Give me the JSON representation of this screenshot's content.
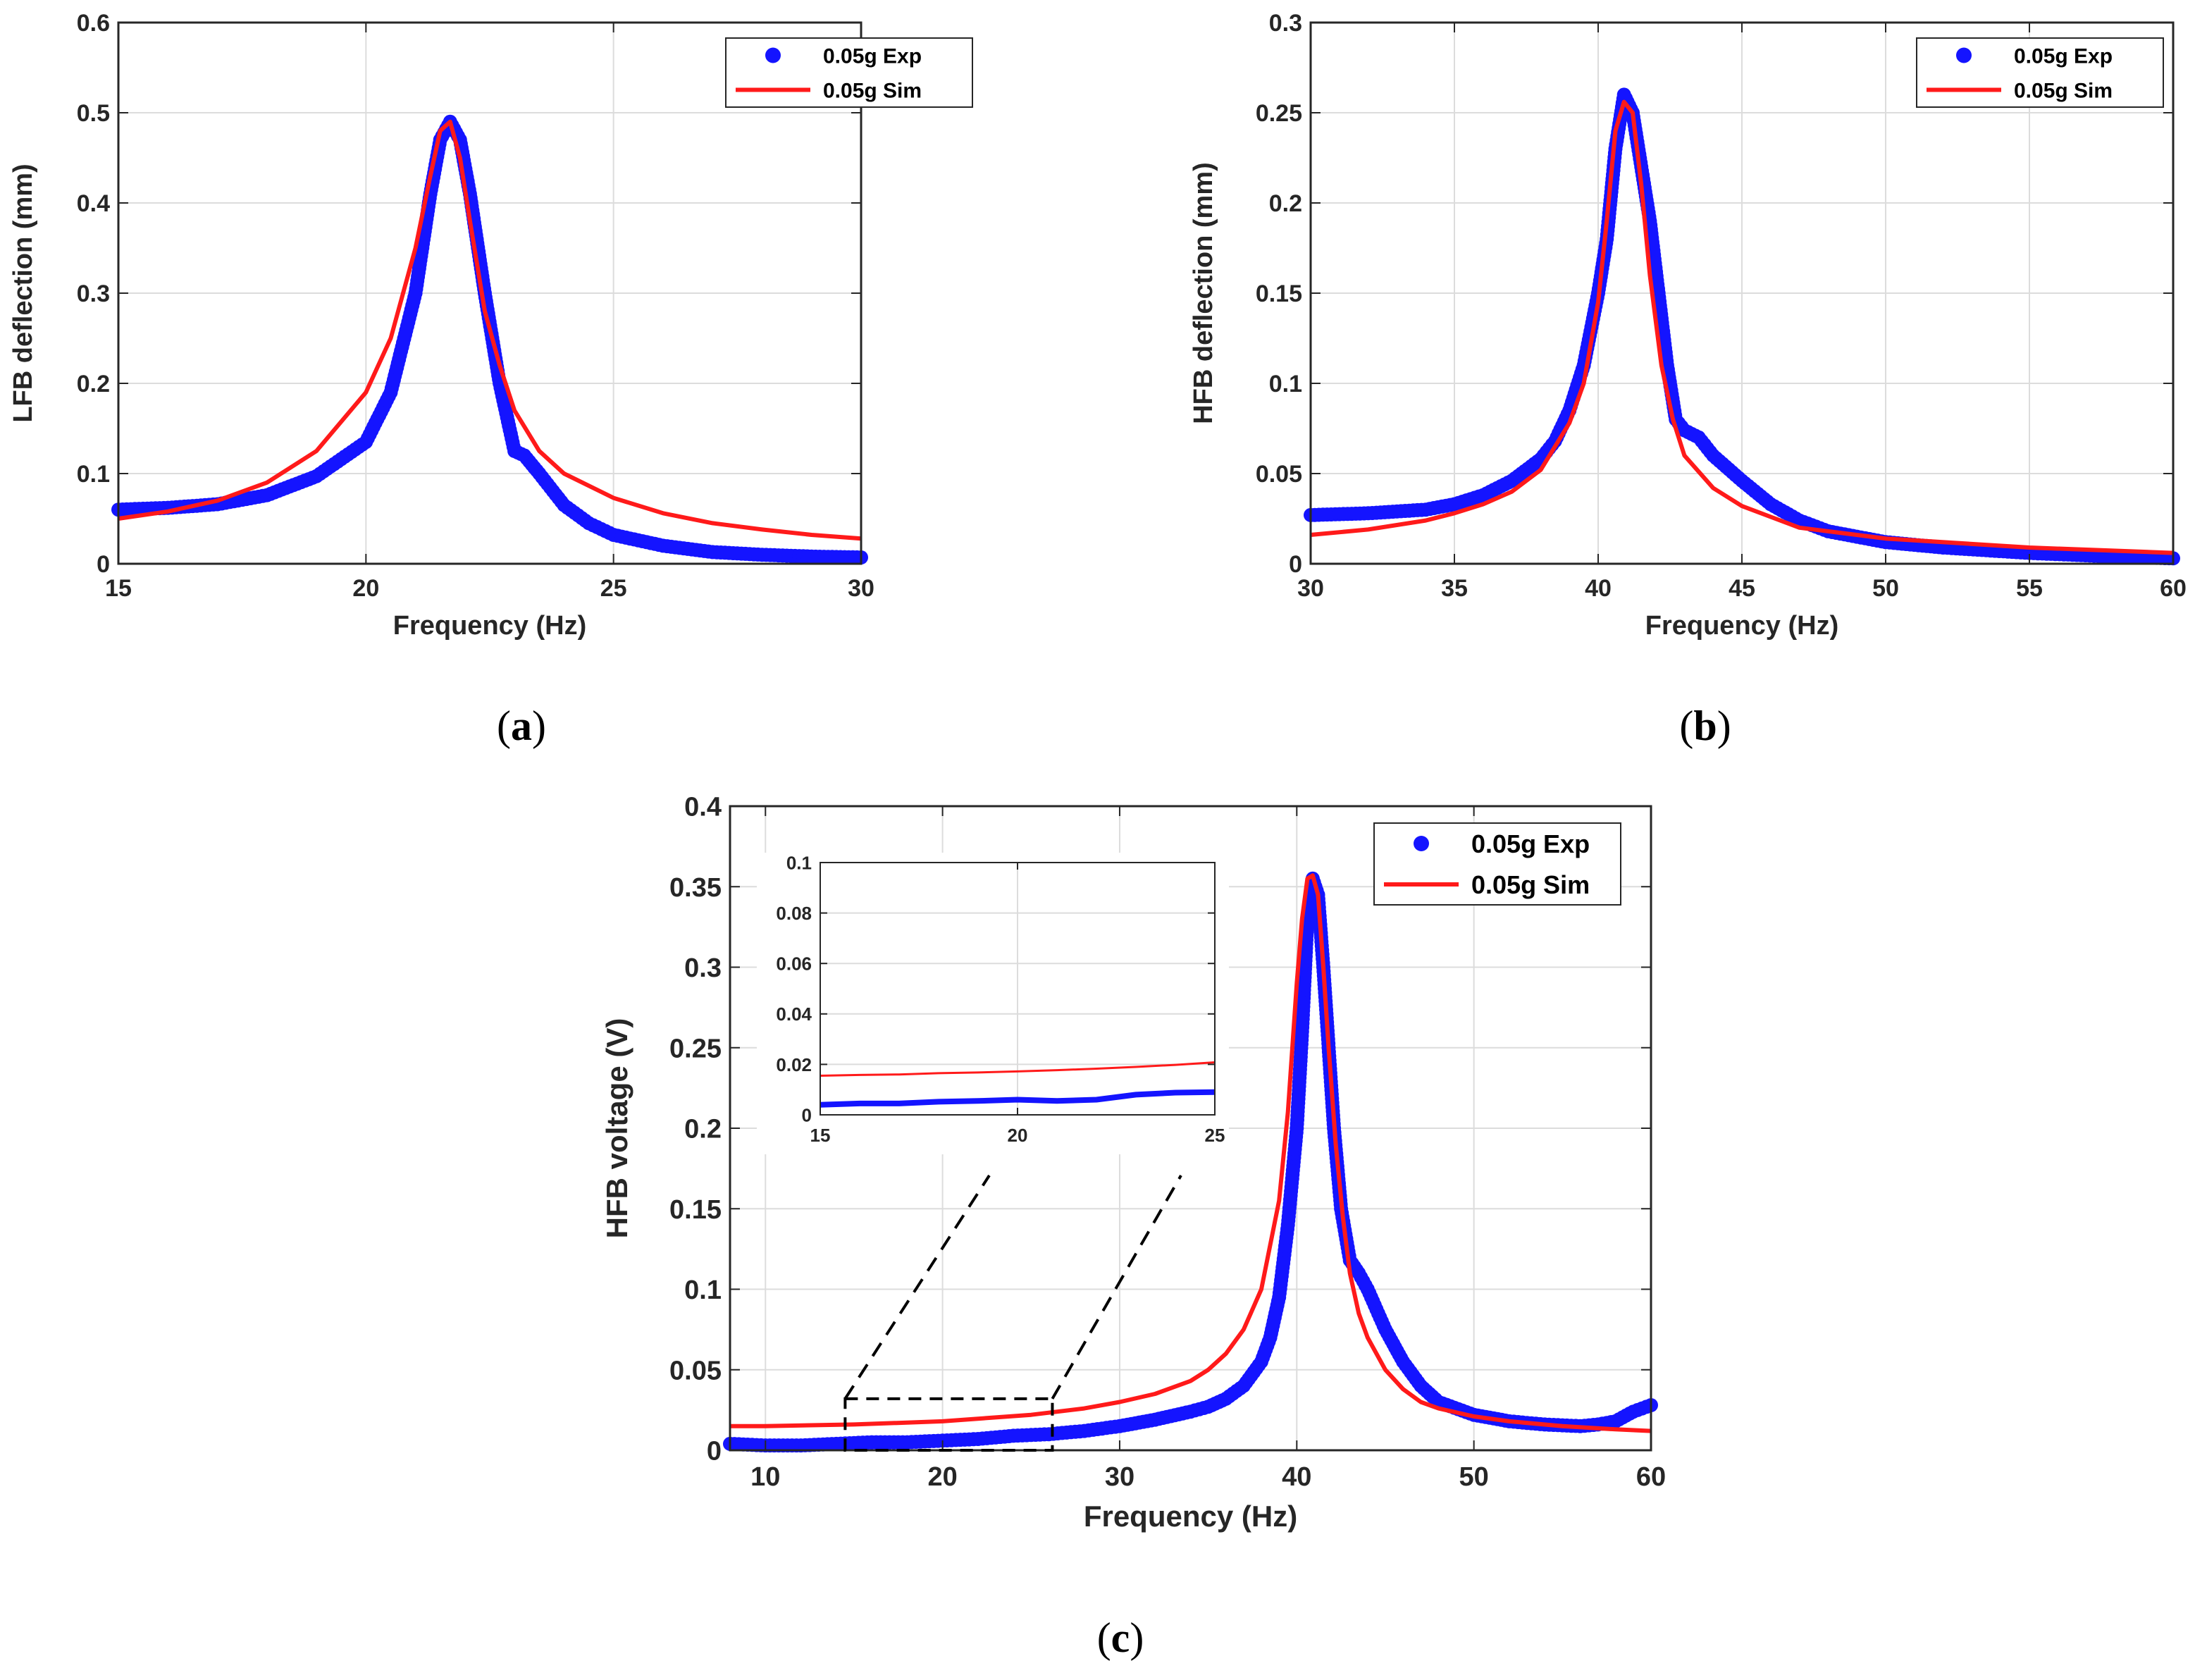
{
  "colors": {
    "exp": "#1414ff",
    "sim": "#ff1a1a",
    "axis": "#262626",
    "grid": "#dcdcdc"
  },
  "chart_data": [
    {
      "id": "a",
      "type": "scatter",
      "caption_letter": "a",
      "xlabel": "Frequency (Hz)",
      "ylabel": "LFB deflection (mm)",
      "xlim": [
        15,
        30
      ],
      "ylim": [
        0,
        0.6
      ],
      "xticks": [
        15,
        20,
        25,
        30
      ],
      "yticks": [
        0,
        0.1,
        0.2,
        0.3,
        0.4,
        0.5,
        0.6
      ],
      "legend_position": "top-right",
      "series": [
        {
          "name": "0.05g Exp",
          "kind": "markers",
          "x": [
            15,
            16,
            17,
            18,
            19,
            20,
            20.5,
            21,
            21.3,
            21.5,
            21.7,
            21.9,
            22.1,
            22.4,
            22.7,
            23,
            23.2,
            23.5,
            24,
            24.5,
            25,
            26,
            27,
            28,
            29,
            30
          ],
          "y": [
            0.06,
            0.062,
            0.066,
            0.076,
            0.097,
            0.135,
            0.19,
            0.3,
            0.41,
            0.47,
            0.49,
            0.47,
            0.41,
            0.3,
            0.2,
            0.125,
            0.12,
            0.1,
            0.065,
            0.045,
            0.032,
            0.02,
            0.013,
            0.01,
            0.008,
            0.007
          ]
        },
        {
          "name": "0.05g Sim",
          "kind": "line",
          "x": [
            15,
            16,
            17,
            18,
            19,
            20,
            20.5,
            21,
            21.3,
            21.5,
            21.7,
            21.9,
            22.1,
            22.4,
            22.7,
            23,
            23.5,
            24,
            25,
            26,
            27,
            28,
            29,
            30
          ],
          "y": [
            0.05,
            0.058,
            0.07,
            0.09,
            0.125,
            0.19,
            0.25,
            0.35,
            0.43,
            0.48,
            0.49,
            0.45,
            0.38,
            0.28,
            0.22,
            0.17,
            0.125,
            0.1,
            0.073,
            0.056,
            0.045,
            0.038,
            0.032,
            0.028
          ]
        }
      ]
    },
    {
      "id": "b",
      "type": "scatter",
      "caption_letter": "b",
      "xlabel": "Frequency (Hz)",
      "ylabel": "HFB deflection (mm)",
      "xlim": [
        30,
        60
      ],
      "ylim": [
        0,
        0.3
      ],
      "xticks": [
        30,
        35,
        40,
        45,
        50,
        55,
        60
      ],
      "yticks": [
        0,
        0.05,
        0.1,
        0.15,
        0.2,
        0.25,
        0.3
      ],
      "legend_position": "top-right",
      "series": [
        {
          "name": "0.05g Exp",
          "kind": "markers",
          "x": [
            30,
            32,
            34,
            35,
            36,
            37,
            38,
            38.5,
            39,
            39.5,
            40,
            40.3,
            40.6,
            40.9,
            41.2,
            41.5,
            41.8,
            42.1,
            42.4,
            42.7,
            43,
            43.5,
            44,
            45,
            46,
            47,
            48,
            50,
            52,
            55,
            58,
            60
          ],
          "y": [
            0.027,
            0.028,
            0.03,
            0.033,
            0.038,
            0.046,
            0.058,
            0.068,
            0.085,
            0.11,
            0.15,
            0.18,
            0.23,
            0.26,
            0.25,
            0.22,
            0.19,
            0.15,
            0.11,
            0.08,
            0.074,
            0.07,
            0.06,
            0.046,
            0.033,
            0.024,
            0.018,
            0.012,
            0.009,
            0.006,
            0.004,
            0.003
          ]
        },
        {
          "name": "0.05g Sim",
          "kind": "line",
          "x": [
            30,
            32,
            34,
            35,
            36,
            37,
            38,
            39,
            39.5,
            40,
            40.3,
            40.6,
            40.9,
            41.2,
            41.5,
            41.8,
            42.2,
            42.6,
            43,
            44,
            45,
            47,
            50,
            55,
            60
          ],
          "y": [
            0.016,
            0.019,
            0.024,
            0.028,
            0.033,
            0.04,
            0.052,
            0.078,
            0.1,
            0.145,
            0.19,
            0.24,
            0.256,
            0.25,
            0.21,
            0.16,
            0.11,
            0.08,
            0.06,
            0.042,
            0.032,
            0.02,
            0.014,
            0.009,
            0.006
          ]
        }
      ]
    },
    {
      "id": "c",
      "type": "scatter",
      "caption_letter": "c",
      "xlabel": "Frequency (Hz)",
      "ylabel": "HFB voltage (V)",
      "xlim": [
        8,
        60
      ],
      "ylim": [
        0,
        0.4
      ],
      "xticks": [
        10,
        20,
        30,
        40,
        50,
        60
      ],
      "yticks": [
        0,
        0.05,
        0.1,
        0.15,
        0.2,
        0.25,
        0.3,
        0.35,
        0.4
      ],
      "legend_position": "top-right",
      "zoom_box": {
        "x": [
          14.5,
          26.2
        ],
        "y": [
          0,
          0.032
        ]
      },
      "series": [
        {
          "name": "0.05g Exp",
          "kind": "markers",
          "x": [
            8,
            10,
            12,
            14,
            16,
            18,
            20,
            22,
            24,
            26,
            28,
            30,
            32,
            34,
            35,
            36,
            37,
            38,
            38.5,
            39,
            39.5,
            40,
            40.3,
            40.6,
            40.9,
            41.2,
            41.5,
            41.8,
            42.1,
            42.5,
            43,
            43.5,
            44,
            45,
            46,
            47,
            48,
            50,
            52,
            54,
            56,
            57,
            58,
            59,
            60
          ],
          "y": [
            0.004,
            0.003,
            0.003,
            0.004,
            0.005,
            0.005,
            0.006,
            0.007,
            0.009,
            0.01,
            0.012,
            0.015,
            0.019,
            0.024,
            0.027,
            0.032,
            0.04,
            0.055,
            0.07,
            0.095,
            0.14,
            0.2,
            0.26,
            0.33,
            0.355,
            0.345,
            0.3,
            0.25,
            0.2,
            0.15,
            0.118,
            0.11,
            0.1,
            0.075,
            0.055,
            0.04,
            0.03,
            0.022,
            0.018,
            0.016,
            0.015,
            0.016,
            0.018,
            0.024,
            0.028
          ]
        },
        {
          "name": "0.05g Sim",
          "kind": "line",
          "x": [
            8,
            10,
            15,
            20,
            25,
            28,
            30,
            32,
            34,
            35,
            36,
            37,
            38,
            39,
            39.5,
            40,
            40.3,
            40.6,
            40.9,
            41.2,
            41.5,
            41.8,
            42.2,
            42.6,
            43,
            43.5,
            44,
            45,
            46,
            47,
            48,
            50,
            52,
            55,
            58,
            60
          ],
          "y": [
            0.015,
            0.015,
            0.016,
            0.018,
            0.022,
            0.026,
            0.03,
            0.035,
            0.043,
            0.05,
            0.06,
            0.075,
            0.1,
            0.155,
            0.21,
            0.29,
            0.33,
            0.355,
            0.357,
            0.345,
            0.3,
            0.25,
            0.19,
            0.145,
            0.11,
            0.085,
            0.07,
            0.05,
            0.038,
            0.03,
            0.026,
            0.021,
            0.018,
            0.015,
            0.013,
            0.012
          ]
        }
      ]
    },
    {
      "id": "c-inset",
      "type": "line",
      "xlim": [
        15,
        25
      ],
      "ylim": [
        0,
        0.1
      ],
      "xticks": [
        15,
        20,
        25
      ],
      "yticks": [
        0,
        0.02,
        0.04,
        0.06,
        0.08,
        0.1
      ],
      "series": [
        {
          "name": "0.05g Exp",
          "kind": "thickline",
          "x": [
            15,
            16,
            17,
            18,
            19,
            20,
            21,
            22,
            23,
            24,
            25
          ],
          "y": [
            0.004,
            0.0045,
            0.0045,
            0.0052,
            0.0055,
            0.006,
            0.0055,
            0.006,
            0.008,
            0.0088,
            0.009
          ]
        },
        {
          "name": "0.05g Sim",
          "kind": "line",
          "x": [
            15,
            16,
            17,
            18,
            19,
            20,
            21,
            22,
            23,
            24,
            25
          ],
          "y": [
            0.0155,
            0.0158,
            0.016,
            0.0165,
            0.0168,
            0.0172,
            0.0177,
            0.0183,
            0.019,
            0.0198,
            0.0208
          ]
        }
      ]
    }
  ]
}
